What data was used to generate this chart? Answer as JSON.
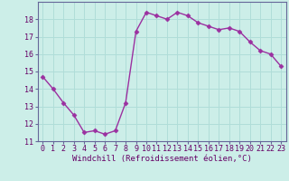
{
  "x": [
    0,
    1,
    2,
    3,
    4,
    5,
    6,
    7,
    8,
    9,
    10,
    11,
    12,
    13,
    14,
    15,
    16,
    17,
    18,
    19,
    20,
    21,
    22,
    23
  ],
  "y": [
    14.7,
    14.0,
    13.2,
    12.5,
    11.5,
    11.6,
    11.4,
    11.6,
    13.2,
    17.3,
    18.4,
    18.2,
    18.0,
    18.4,
    18.2,
    17.8,
    17.6,
    17.4,
    17.5,
    17.3,
    16.7,
    16.2,
    16.0,
    15.3
  ],
  "line_color": "#9b30a0",
  "marker": "D",
  "marker_size": 2.5,
  "bg_color": "#cceee8",
  "grid_color": "#b0ddd8",
  "xlabel": "Windchill (Refroidissement éolien,°C)",
  "ylim_min": 11,
  "ylim_max": 19,
  "yticks": [
    11,
    12,
    13,
    14,
    15,
    16,
    17,
    18
  ],
  "xticks": [
    0,
    1,
    2,
    3,
    4,
    5,
    6,
    7,
    8,
    9,
    10,
    11,
    12,
    13,
    14,
    15,
    16,
    17,
    18,
    19,
    20,
    21,
    22,
    23
  ],
  "xlabel_fontsize": 6.5,
  "tick_fontsize": 6.0,
  "tick_color": "#660066",
  "spine_color": "#666699",
  "line_width": 1.0
}
